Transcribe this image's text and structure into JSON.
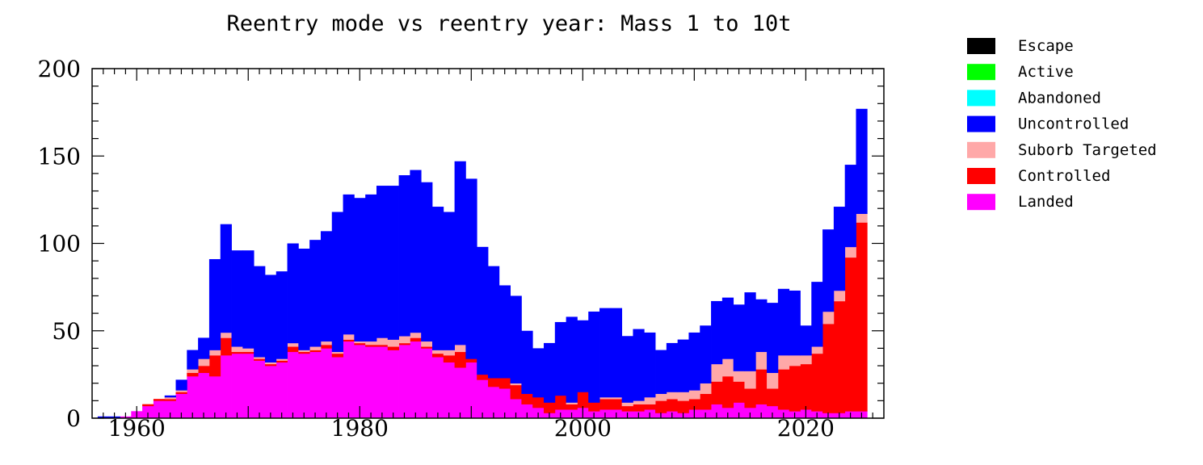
{
  "chart_data": {
    "type": "bar",
    "stacked": true,
    "title": "Reentry mode vs reentry year: Mass 1 to 10t",
    "xlabel": "",
    "ylabel": "",
    "xlim": [
      1956,
      2027
    ],
    "ylim": [
      0,
      200
    ],
    "x_ticks": [
      1960,
      1980,
      2000,
      2020
    ],
    "y_ticks": [
      0,
      50,
      100,
      150,
      200
    ],
    "grid": false,
    "legend_position": "right",
    "years": [
      1957,
      1958,
      1959,
      1960,
      1961,
      1962,
      1963,
      1964,
      1965,
      1966,
      1967,
      1968,
      1969,
      1970,
      1971,
      1972,
      1973,
      1974,
      1975,
      1976,
      1977,
      1978,
      1979,
      1980,
      1981,
      1982,
      1983,
      1984,
      1985,
      1986,
      1987,
      1988,
      1989,
      1990,
      1991,
      1992,
      1993,
      1994,
      1995,
      1996,
      1997,
      1998,
      1999,
      2000,
      2001,
      2002,
      2003,
      2004,
      2005,
      2006,
      2007,
      2008,
      2009,
      2010,
      2011,
      2012,
      2013,
      2014,
      2015,
      2016,
      2017,
      2018,
      2019,
      2020,
      2021,
      2022,
      2023,
      2024,
      2025
    ],
    "series": [
      {
        "name": "Landed",
        "color": "#ff00ff",
        "values": [
          0,
          0,
          1,
          4,
          7,
          10,
          10,
          14,
          24,
          26,
          24,
          36,
          37,
          37,
          33,
          30,
          32,
          38,
          37,
          38,
          40,
          35,
          44,
          42,
          41,
          41,
          39,
          42,
          44,
          40,
          35,
          32,
          29,
          32,
          22,
          18,
          17,
          11,
          8,
          6,
          3,
          5,
          5,
          6,
          4,
          5,
          5,
          4,
          4,
          5,
          3,
          4,
          3,
          5,
          5,
          8,
          6,
          9,
          6,
          8,
          7,
          5,
          4,
          5,
          4,
          3,
          3,
          4,
          4
        ]
      },
      {
        "name": "Controlled",
        "color": "#ff0000",
        "values": [
          0,
          0,
          0,
          0,
          1,
          1,
          1,
          1,
          2,
          4,
          12,
          10,
          1,
          1,
          1,
          1,
          1,
          3,
          1,
          1,
          2,
          2,
          1,
          1,
          1,
          1,
          2,
          1,
          2,
          1,
          2,
          4,
          9,
          2,
          3,
          5,
          6,
          8,
          6,
          6,
          6,
          8,
          3,
          9,
          5,
          6,
          6,
          3,
          4,
          3,
          7,
          7,
          7,
          6,
          9,
          13,
          18,
          12,
          11,
          20,
          10,
          23,
          26,
          26,
          33,
          51,
          64,
          88,
          108
        ]
      },
      {
        "name": "Suborb Targeted",
        "color": "#ffa8a8",
        "values": [
          0,
          0,
          0,
          0,
          0,
          0,
          1,
          1,
          2,
          4,
          3,
          3,
          3,
          2,
          1,
          1,
          1,
          2,
          1,
          2,
          2,
          1,
          3,
          1,
          2,
          4,
          4,
          4,
          3,
          3,
          2,
          3,
          4,
          0,
          0,
          0,
          0,
          1,
          0,
          0,
          0,
          0,
          1,
          0,
          0,
          1,
          1,
          2,
          2,
          4,
          4,
          4,
          5,
          5,
          6,
          10,
          10,
          6,
          10,
          10,
          9,
          8,
          6,
          5,
          4,
          7,
          6,
          6,
          5
        ]
      },
      {
        "name": "Uncontrolled",
        "color": "#0000ff",
        "values": [
          1,
          1,
          0,
          0,
          0,
          0,
          1,
          6,
          11,
          12,
          52,
          62,
          55,
          56,
          52,
          50,
          50,
          57,
          58,
          61,
          63,
          80,
          80,
          82,
          84,
          87,
          88,
          92,
          93,
          91,
          82,
          79,
          105,
          103,
          73,
          64,
          53,
          50,
          36,
          28,
          34,
          42,
          49,
          41,
          52,
          51,
          51,
          38,
          41,
          37,
          25,
          28,
          30,
          33,
          33,
          36,
          35,
          38,
          45,
          30,
          40,
          38,
          37,
          17,
          37,
          47,
          48,
          47,
          60
        ]
      },
      {
        "name": "Abandoned",
        "color": "#00ffff",
        "values": [
          0,
          0,
          0,
          0,
          0,
          0,
          0,
          0,
          0,
          0,
          0,
          0,
          0,
          0,
          0,
          0,
          0,
          0,
          0,
          0,
          0,
          0,
          0,
          0,
          0,
          0,
          0,
          0,
          0,
          0,
          0,
          0,
          0,
          0,
          0,
          0,
          0,
          0,
          0,
          0,
          0,
          0,
          0,
          0,
          0,
          0,
          0,
          0,
          0,
          0,
          0,
          0,
          0,
          0,
          0,
          0,
          0,
          0,
          0,
          0,
          0,
          0,
          0,
          0,
          0,
          0,
          0,
          0,
          0
        ]
      },
      {
        "name": "Active",
        "color": "#00ff00",
        "values": [
          0,
          0,
          0,
          0,
          0,
          0,
          0,
          0,
          0,
          0,
          0,
          0,
          0,
          0,
          0,
          0,
          0,
          0,
          0,
          0,
          0,
          0,
          0,
          0,
          0,
          0,
          0,
          0,
          0,
          0,
          0,
          0,
          0,
          0,
          0,
          0,
          0,
          0,
          0,
          0,
          0,
          0,
          0,
          0,
          0,
          0,
          0,
          0,
          0,
          0,
          0,
          0,
          0,
          0,
          0,
          0,
          0,
          0,
          0,
          0,
          0,
          0,
          0,
          0,
          0,
          0,
          0,
          0,
          0
        ]
      },
      {
        "name": "Escape",
        "color": "#000000",
        "values": [
          0,
          0,
          0,
          0,
          0,
          0,
          0,
          0,
          0,
          0,
          0,
          0,
          0,
          0,
          0,
          0,
          0,
          0,
          0,
          0,
          0,
          0,
          0,
          0,
          0,
          0,
          0,
          0,
          0,
          0,
          0,
          0,
          0,
          0,
          0,
          0,
          0,
          0,
          0,
          0,
          0,
          0,
          0,
          0,
          0,
          0,
          0,
          0,
          0,
          0,
          0,
          0,
          0,
          0,
          0,
          0,
          0,
          0,
          0,
          0,
          0,
          0,
          0,
          0,
          0,
          0,
          0,
          0,
          0
        ]
      }
    ]
  }
}
